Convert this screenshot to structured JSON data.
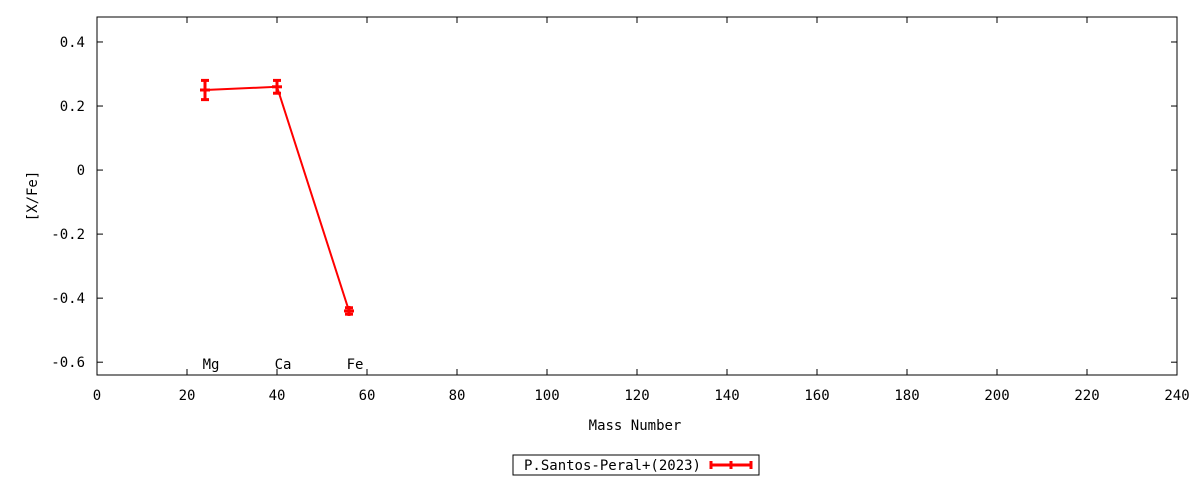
{
  "chart_data": {
    "type": "line",
    "title": "",
    "xlabel": "Mass Number",
    "ylabel": "[X/Fe]",
    "xlim": [
      0,
      240
    ],
    "ylim": [
      -0.64,
      0.478
    ],
    "xticks": [
      0,
      20,
      40,
      60,
      80,
      100,
      120,
      140,
      160,
      180,
      200,
      220,
      240
    ],
    "xtick_labels": [
      "0",
      "20",
      "40",
      "60",
      "80",
      "100",
      "120",
      "140",
      "160",
      "180",
      "200",
      "220",
      "240"
    ],
    "yticks": [
      0.4,
      0.2,
      0,
      -0.2,
      -0.4,
      -0.6
    ],
    "ytick_labels": [
      "0.4",
      "0.2",
      "0",
      "-0.2",
      "-0.4",
      "-0.6"
    ],
    "grid": false,
    "legend_position": "bottom-center",
    "element_labels": [
      {
        "text": "Mg",
        "x": 24
      },
      {
        "text": "Ca",
        "x": 40
      },
      {
        "text": "Fe",
        "x": 56
      }
    ],
    "series": [
      {
        "name": "P.Santos-Peral+(2023)",
        "color": "#ff0000",
        "points": [
          {
            "x": 24,
            "y": 0.25,
            "err": 0.03
          },
          {
            "x": 40,
            "y": 0.26,
            "err": 0.02
          },
          {
            "x": 56,
            "y": -0.44,
            "err": 0.01
          }
        ]
      }
    ]
  }
}
